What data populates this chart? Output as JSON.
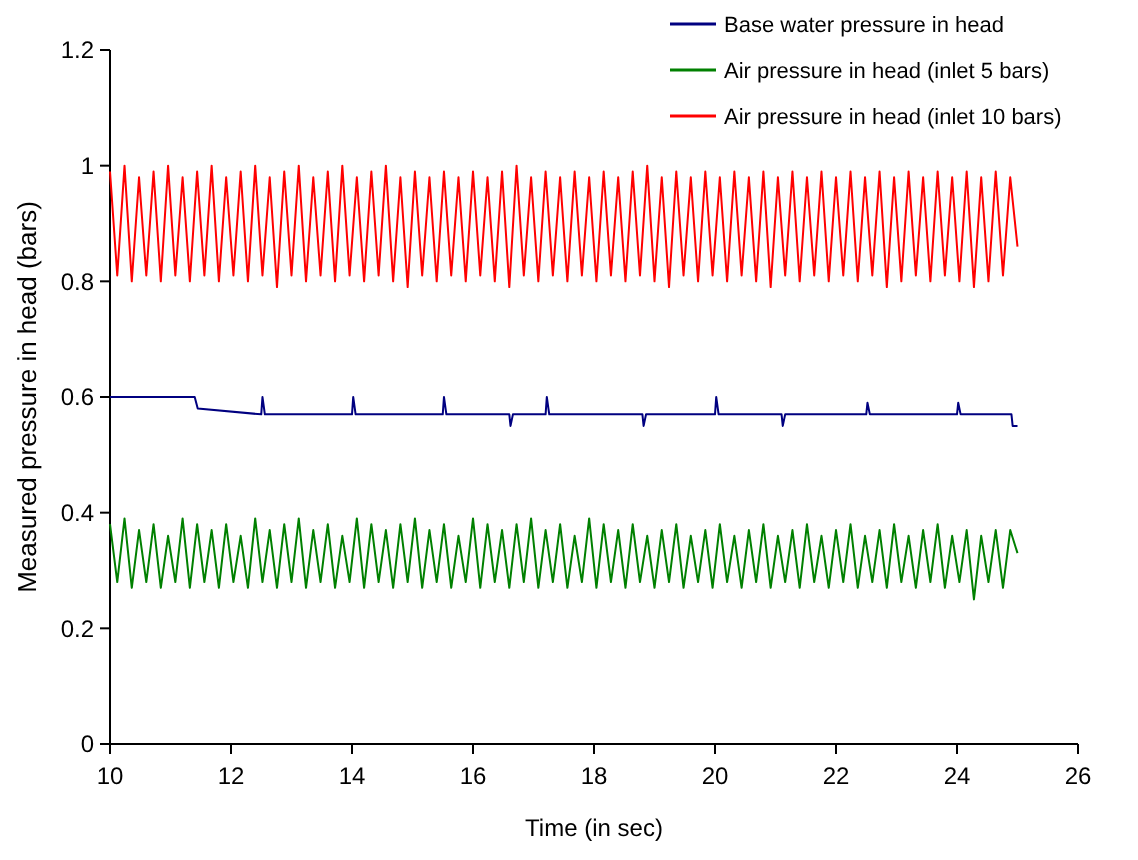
{
  "chart_data": {
    "type": "line",
    "xlabel": "Time (in sec)",
    "ylabel": "Measured pressure in head (bars)",
    "xlim": [
      10,
      26
    ],
    "xticks": [
      10,
      12,
      14,
      16,
      18,
      20,
      22,
      24,
      26
    ],
    "ylim": [
      0,
      1.2
    ],
    "yticks": [
      0,
      0.2,
      0.4,
      0.6,
      0.8,
      1,
      1.2
    ],
    "grid": false,
    "legend": "top right",
    "marker": "none",
    "line_style": "solid",
    "x": [
      10,
      10.12,
      10.24,
      10.36,
      10.48,
      10.6,
      10.72,
      10.84,
      10.96,
      11.08,
      11.2,
      11.32,
      11.44,
      11.56,
      11.68,
      11.8,
      11.92,
      12.04,
      12.16,
      12.28,
      12.4,
      12.52,
      12.64,
      12.76,
      12.88,
      13,
      13.12,
      13.24,
      13.36,
      13.48,
      13.6,
      13.72,
      13.84,
      13.96,
      14.08,
      14.2,
      14.32,
      14.44,
      14.56,
      14.68,
      14.8,
      14.92,
      15.04,
      15.16,
      15.28,
      15.4,
      15.52,
      15.64,
      15.76,
      15.88,
      16,
      16.12,
      16.24,
      16.36,
      16.48,
      16.6,
      16.72,
      16.84,
      16.96,
      17.08,
      17.2,
      17.32,
      17.44,
      17.56,
      17.68,
      17.8,
      17.92,
      18.04,
      18.16,
      18.28,
      18.4,
      18.52,
      18.64,
      18.76,
      18.88,
      19,
      19.12,
      19.24,
      19.36,
      19.48,
      19.6,
      19.72,
      19.84,
      19.96,
      20.08,
      20.2,
      20.32,
      20.44,
      20.56,
      20.68,
      20.8,
      20.92,
      21.04,
      21.16,
      21.28,
      21.4,
      21.52,
      21.64,
      21.76,
      21.88,
      22,
      22.12,
      22.24,
      22.36,
      22.48,
      22.6,
      22.72,
      22.84,
      22.96,
      23.08,
      23.2,
      23.32,
      23.44,
      23.56,
      23.68,
      23.8,
      23.92,
      24.04,
      24.16,
      24.28,
      24.4,
      24.52,
      24.64,
      24.76,
      24.88,
      25
    ],
    "series": [
      {
        "name": "Base water pressure in head",
        "color": "#000080",
        "x": [
          10,
          11.4,
          11.45,
          12.5,
          12.52,
          12.56,
          14,
          14.02,
          14.06,
          15.5,
          15.52,
          15.56,
          16.6,
          16.62,
          16.66,
          17.2,
          17.22,
          17.26,
          18.8,
          18.82,
          18.86,
          20,
          20.02,
          20.06,
          21.1,
          21.12,
          21.16,
          22.5,
          22.52,
          22.56,
          24,
          24.02,
          24.06,
          24.9,
          24.92,
          25
        ],
        "values": [
          0.6,
          0.6,
          0.58,
          0.57,
          0.6,
          0.57,
          0.57,
          0.6,
          0.57,
          0.57,
          0.6,
          0.57,
          0.57,
          0.55,
          0.57,
          0.57,
          0.6,
          0.57,
          0.57,
          0.55,
          0.57,
          0.57,
          0.6,
          0.57,
          0.57,
          0.55,
          0.57,
          0.57,
          0.59,
          0.57,
          0.57,
          0.59,
          0.57,
          0.57,
          0.55,
          0.55
        ]
      },
      {
        "name": "Air pressure in head (inlet 5 bars)",
        "color": "#008000",
        "values": [
          0.38,
          0.28,
          0.39,
          0.27,
          0.37,
          0.28,
          0.38,
          0.27,
          0.36,
          0.28,
          0.39,
          0.27,
          0.38,
          0.28,
          0.37,
          0.27,
          0.38,
          0.28,
          0.36,
          0.27,
          0.39,
          0.28,
          0.37,
          0.27,
          0.38,
          0.28,
          0.39,
          0.27,
          0.37,
          0.28,
          0.38,
          0.27,
          0.36,
          0.28,
          0.39,
          0.27,
          0.38,
          0.28,
          0.37,
          0.27,
          0.38,
          0.28,
          0.39,
          0.27,
          0.37,
          0.28,
          0.38,
          0.27,
          0.36,
          0.28,
          0.39,
          0.27,
          0.38,
          0.28,
          0.37,
          0.27,
          0.38,
          0.28,
          0.39,
          0.27,
          0.37,
          0.28,
          0.38,
          0.27,
          0.36,
          0.28,
          0.39,
          0.27,
          0.38,
          0.28,
          0.37,
          0.27,
          0.38,
          0.28,
          0.36,
          0.27,
          0.37,
          0.28,
          0.38,
          0.27,
          0.36,
          0.28,
          0.37,
          0.27,
          0.38,
          0.28,
          0.36,
          0.27,
          0.37,
          0.28,
          0.38,
          0.27,
          0.36,
          0.28,
          0.37,
          0.27,
          0.38,
          0.28,
          0.36,
          0.27,
          0.37,
          0.28,
          0.38,
          0.27,
          0.36,
          0.28,
          0.37,
          0.27,
          0.38,
          0.28,
          0.36,
          0.27,
          0.37,
          0.28,
          0.38,
          0.27,
          0.36,
          0.28,
          0.37,
          0.25,
          0.36,
          0.28,
          0.37,
          0.27,
          0.37,
          0.33
        ]
      },
      {
        "name": "Air pressure in head (inlet 10 bars)",
        "color": "#ff0000",
        "values": [
          0.99,
          0.81,
          1,
          0.8,
          0.98,
          0.81,
          0.99,
          0.8,
          1,
          0.81,
          0.98,
          0.8,
          0.99,
          0.81,
          1,
          0.8,
          0.98,
          0.81,
          0.99,
          0.8,
          1,
          0.81,
          0.98,
          0.79,
          0.99,
          0.81,
          1,
          0.8,
          0.98,
          0.81,
          0.99,
          0.8,
          1,
          0.81,
          0.98,
          0.8,
          0.99,
          0.81,
          1,
          0.8,
          0.98,
          0.79,
          0.99,
          0.81,
          0.98,
          0.8,
          0.99,
          0.81,
          0.98,
          0.8,
          0.99,
          0.81,
          0.98,
          0.8,
          0.99,
          0.79,
          1,
          0.81,
          0.98,
          0.8,
          0.99,
          0.81,
          0.98,
          0.8,
          0.99,
          0.81,
          0.98,
          0.8,
          0.99,
          0.81,
          0.98,
          0.8,
          0.99,
          0.81,
          1,
          0.8,
          0.98,
          0.79,
          0.99,
          0.81,
          0.98,
          0.8,
          0.99,
          0.81,
          0.98,
          0.8,
          0.99,
          0.81,
          0.98,
          0.8,
          0.99,
          0.79,
          0.98,
          0.81,
          0.99,
          0.8,
          0.98,
          0.81,
          0.99,
          0.8,
          0.98,
          0.81,
          0.99,
          0.8,
          0.98,
          0.81,
          0.99,
          0.79,
          0.98,
          0.8,
          0.99,
          0.81,
          0.98,
          0.8,
          0.99,
          0.81,
          0.98,
          0.8,
          0.99,
          0.79,
          0.98,
          0.8,
          0.99,
          0.81,
          0.98,
          0.86
        ]
      }
    ]
  }
}
